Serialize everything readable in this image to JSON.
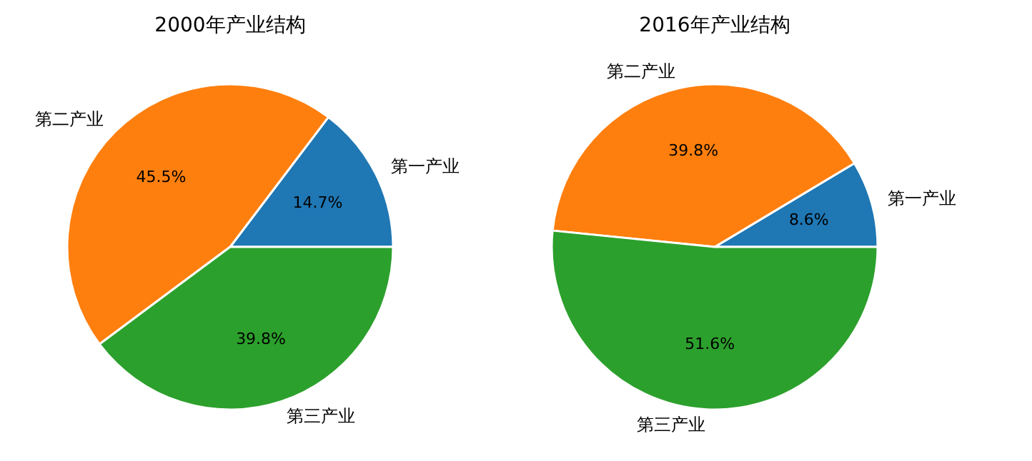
{
  "chart_data": [
    {
      "type": "pie",
      "title": "2000年产业结构",
      "categories": [
        "第一产业",
        "第二产业",
        "第三产业"
      ],
      "values": [
        14.7,
        45.5,
        39.8
      ],
      "colors": [
        "#1f77b4",
        "#ff7f0e",
        "#2ca02c"
      ],
      "value_labels": [
        "14.7%",
        "45.5%",
        "39.8%"
      ]
    },
    {
      "type": "pie",
      "title": "2016年产业结构",
      "categories": [
        "第一产业",
        "第二产业",
        "第三产业"
      ],
      "values": [
        8.6,
        39.8,
        51.6
      ],
      "colors": [
        "#1f77b4",
        "#ff7f0e",
        "#2ca02c"
      ],
      "value_labels": [
        "8.6%",
        "39.8%",
        "51.6%"
      ]
    }
  ]
}
